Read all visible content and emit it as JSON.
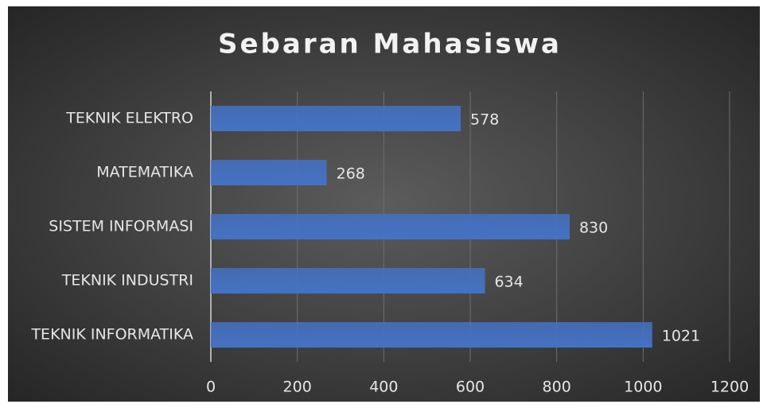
{
  "chart_data": {
    "type": "barh",
    "title": "Sebaran Mahasiswa",
    "categories": [
      "TEKNIK ELEKTRO",
      "MATEMATIKA",
      "SISTEM INFORMASI",
      "TEKNIK INDUSTRI",
      "TEKNIK INFORMATIKA"
    ],
    "values": [
      578,
      268,
      830,
      634,
      1021
    ],
    "color": "#4472c4",
    "xlim": [
      0,
      1200
    ],
    "xticks": [
      0,
      200,
      400,
      600,
      800,
      1000,
      1200
    ],
    "grid": true
  }
}
